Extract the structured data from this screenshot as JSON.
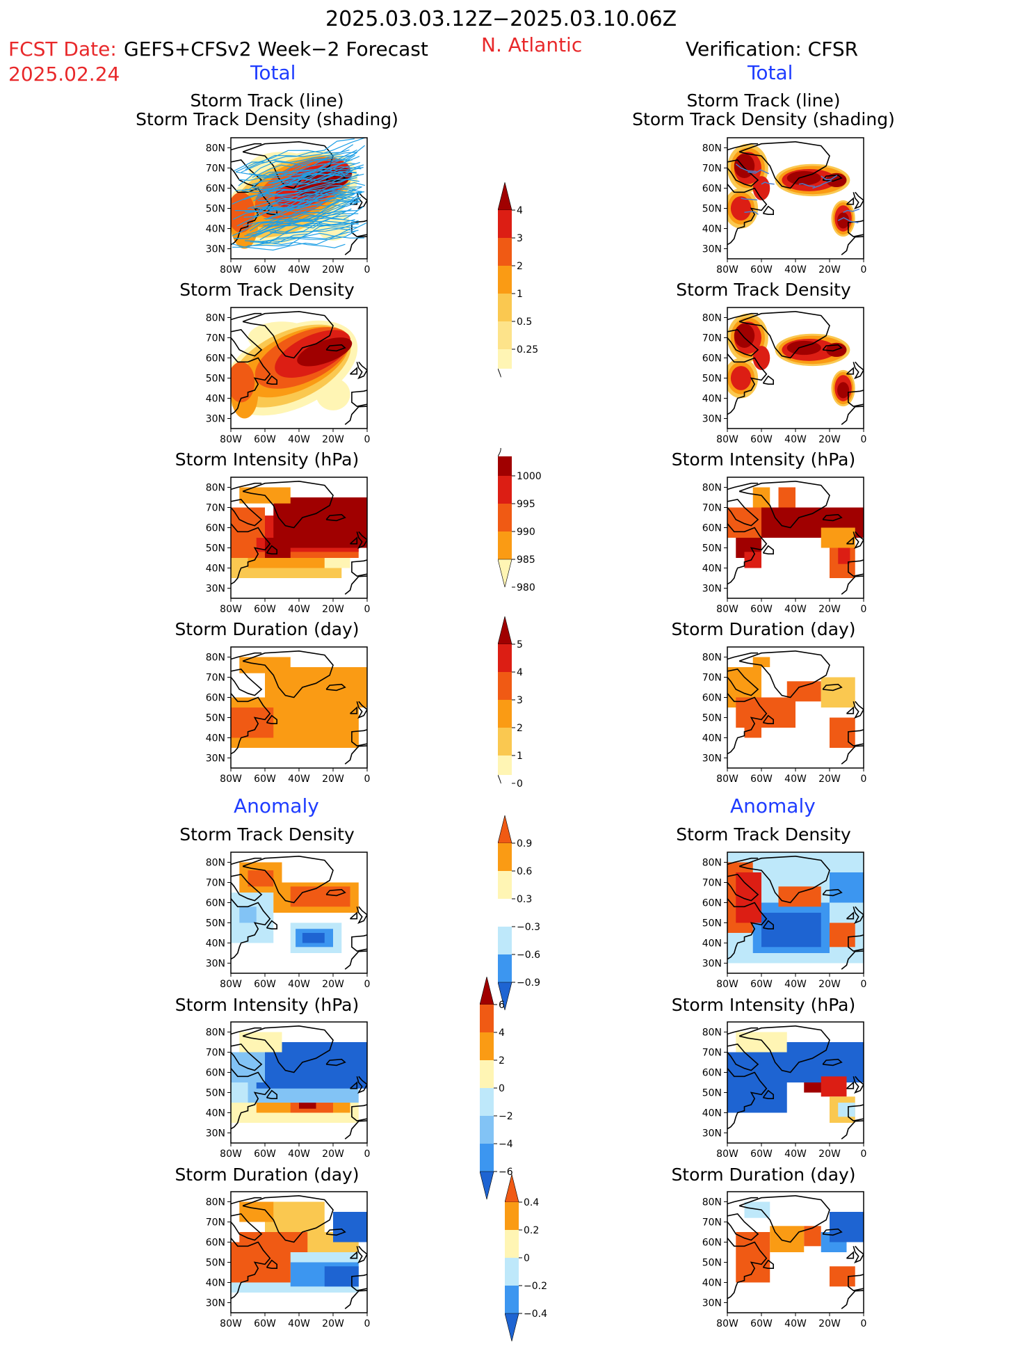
{
  "header": {
    "date_range": "2025.03.03.12Z−2025.03.10.06Z",
    "fcst_label": "FCST Date:",
    "fcst_model": "GEFS+CFSv2 Week−2 Forecast",
    "fcst_date": "2025.02.24",
    "region": "N. Atlantic",
    "verification": "Verification: CFSR"
  },
  "sections": {
    "total_left": "Total",
    "total_right": "Total",
    "anomaly_left": "Anomaly",
    "anomaly_right": "Anomaly"
  },
  "panel_titles": {
    "track_line": "Storm Track (line)",
    "track_shading": "Storm Track Density (shading)",
    "density": "Storm Track Density",
    "intensity": "Storm Intensity (hPa)",
    "duration": "Storm Duration (day)"
  },
  "axes": {
    "lat_labels": [
      "80N",
      "70N",
      "60N",
      "50N",
      "40N",
      "30N"
    ],
    "lon_labels": [
      "80W",
      "60W",
      "40W",
      "20W",
      "0"
    ]
  },
  "colorbars": {
    "density_total": [
      "4",
      "3",
      "2",
      "1",
      "0.5",
      "0.25"
    ],
    "intensity_total": [
      "1000",
      "995",
      "990",
      "985",
      "980"
    ],
    "duration_total": [
      "5",
      "4",
      "3",
      "2",
      "1",
      "0"
    ],
    "density_anomaly": [
      "0.9",
      "0.6",
      "0.3",
      "−0.3",
      "−0.6",
      "−0.9"
    ],
    "intensity_anomaly": [
      "6",
      "4",
      "2",
      "0",
      "−2",
      "−4",
      "−6"
    ],
    "duration_anomaly": [
      "0.4",
      "0.2",
      "0",
      "−0.2",
      "−0.4"
    ]
  },
  "colors": {
    "header_red": "#e8282a",
    "section_blue": "#1e3cff",
    "track_line": "#1e9fe6",
    "dark_red": "#a00000",
    "red": "#dc1e14",
    "orange_red": "#f05a14",
    "orange": "#fa9b14",
    "light_orange": "#fac850",
    "pale_yellow": "#fff5b4",
    "light_blue": "#bee8fa",
    "mid_blue": "#82c3f5",
    "blue": "#3c96f0",
    "deep_blue": "#1e64d2"
  }
}
